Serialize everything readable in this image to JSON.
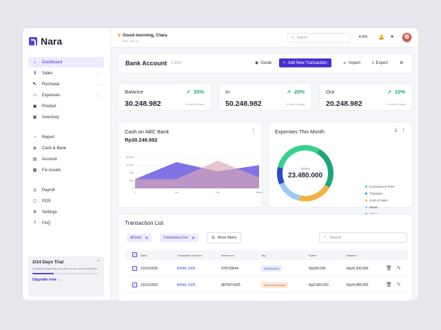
{
  "app": {
    "name": "Nara"
  },
  "sidebar": {
    "items": [
      {
        "label": "Dashboard",
        "icon": "home-icon",
        "glyph": "⌂",
        "active": true
      },
      {
        "label": "Sales",
        "icon": "dollar-icon",
        "glyph": "$",
        "chevron": true
      },
      {
        "label": "Purchase",
        "icon": "cart-icon",
        "glyph": "⛍",
        "chevron": true
      },
      {
        "label": "Expenses",
        "icon": "wallet-icon",
        "glyph": "▭",
        "chevron": true
      },
      {
        "label": "Product",
        "icon": "product-icon",
        "glyph": "▣"
      },
      {
        "label": "Inventory",
        "icon": "inventory-icon",
        "glyph": "▦"
      },
      {
        "label": "Report",
        "icon": "report-icon",
        "glyph": "◔"
      },
      {
        "label": "Cash & Bank",
        "icon": "bank-icon",
        "glyph": "◍"
      },
      {
        "label": "Account",
        "icon": "account-icon",
        "glyph": "▤"
      },
      {
        "label": "Fix Assets",
        "icon": "assets-icon",
        "glyph": "▩"
      },
      {
        "label": "Payroll",
        "icon": "payroll-icon",
        "glyph": "◎"
      },
      {
        "label": "POS",
        "icon": "pos-icon",
        "glyph": "▢"
      },
      {
        "label": "Settings",
        "icon": "gear-icon",
        "glyph": "⚙"
      },
      {
        "label": "FAQ",
        "icon": "question-icon",
        "glyph": "?"
      }
    ],
    "trial": {
      "title": "2/14 Days Trial",
      "desc": "Consider upgrading your plan so you can go limitless.",
      "progress": 0.14,
      "link": "Upgrade now"
    }
  },
  "topbar": {
    "greeting": "Good morning, Clara",
    "date": "Mon, July 20",
    "search_placeholder": "Search",
    "lang": "EN"
  },
  "header": {
    "title": "Bank Account",
    "id": "1-1012",
    "guide": "Guide",
    "add": "Add New Transaction",
    "import": "Import",
    "export": "Export"
  },
  "stats": [
    {
      "label": "Balance",
      "pct": "20%",
      "value": "30.248.982",
      "sub": "in last 30 days"
    },
    {
      "label": "In",
      "pct": "20%",
      "value": "50.248.982",
      "sub": "in last 30 days"
    },
    {
      "label": "Out",
      "pct": "10%",
      "value": "20.248.982",
      "sub": "in last 30 days"
    }
  ],
  "cash_chart": {
    "title": "Cash on ABC Bank",
    "value": "Rp30.248.982",
    "chart_data": {
      "type": "area",
      "categories": [
        "0",
        "Jan",
        "Feb",
        "March"
      ],
      "yticks": [
        "500.000",
        "750.000",
        "150k",
        "300k",
        "0"
      ],
      "series": [
        {
          "values": [
            0.3,
            0.85,
            0.55,
            0.75
          ],
          "color": "#6a5be0"
        },
        {
          "values": [
            0.3,
            0.3,
            0.9,
            0.35
          ],
          "color": "#d9a8b4"
        }
      ]
    }
  },
  "expenses": {
    "title": "Expenses This Month",
    "total_label": "TOTAL",
    "total": "23.480.000",
    "chart_data": {
      "type": "pie",
      "slices": [
        {
          "name": "Comission & Fees",
          "value": 30,
          "pct": "30%",
          "color": "#36d28a"
        },
        {
          "name": "Transport",
          "value": 25,
          "pct": "25%",
          "color": "#1ea47a"
        },
        {
          "name": "Cost of Sales",
          "value": 20,
          "pct": "20%",
          "color": "#f1b33f"
        },
        {
          "name": "Meals",
          "value": 15,
          "pct": "15%",
          "color": "#9cc8f2"
        },
        {
          "name": "Other",
          "value": 10,
          "pct": "10%",
          "color": "#2d47c9"
        }
      ]
    }
  },
  "transactions": {
    "title": "Transaction List",
    "chips": [
      "All time",
      "Comissions Fee"
    ],
    "more_filters": "More filters",
    "search_placeholder": "Search",
    "columns": [
      "Date",
      "Transaction Number",
      "Reference",
      "Tag",
      "Spent",
      "Balance"
    ],
    "rows": [
      {
        "date": "21/01/2025",
        "number": "BANK-1006",
        "ref": "978733644",
        "tag": "Subscription",
        "tag_bg": "#e6ebff",
        "tag_color": "#3a4fc8",
        "spent": "Rp189.000",
        "balance": "Rp24.300.000"
      },
      {
        "date": "21/01/2025",
        "number": "BANK-1005",
        "ref": "9875674325",
        "tag": "Marketing Budget",
        "tag_bg": "#fde9dc",
        "tag_color": "#c8641e",
        "spent": "Rp2.000.000",
        "balance": "Rp24.489.000"
      }
    ]
  }
}
